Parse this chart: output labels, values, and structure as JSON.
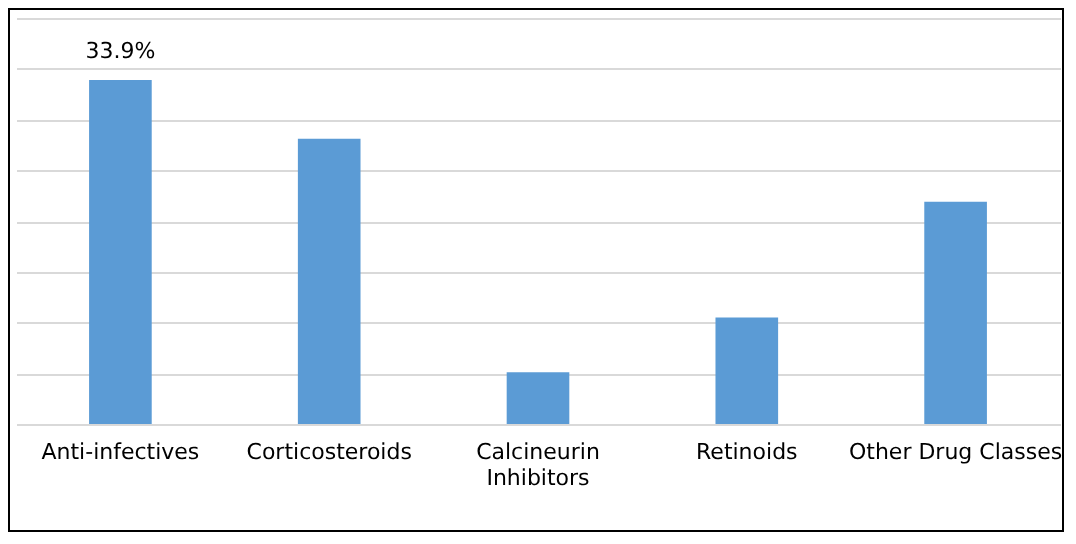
{
  "chart_data": {
    "type": "bar",
    "categories": [
      "Anti-infectives",
      "Corticosteroids",
      "Calcineurin Inhibitors",
      "Retinoids",
      "Other Drug Classes"
    ],
    "values": [
      33.9,
      28.1,
      5.1,
      10.5,
      21.9
    ],
    "value_labels": [
      "33.9%",
      null,
      null,
      null,
      null
    ],
    "color": "#5b9bd5",
    "ylim": [
      0,
      40
    ],
    "yticks": [
      {
        "value": 0,
        "label": null
      },
      {
        "value": 5,
        "label": null
      },
      {
        "value": 10,
        "label": null
      },
      {
        "value": 15,
        "label": null
      },
      {
        "value": 20,
        "label": null
      },
      {
        "value": 25,
        "label": null
      },
      {
        "value": 30,
        "label": null
      },
      {
        "value": 35,
        "label": null
      },
      {
        "value": 40,
        "label": null
      }
    ],
    "grid": "y",
    "tick_labels": "x"
  }
}
